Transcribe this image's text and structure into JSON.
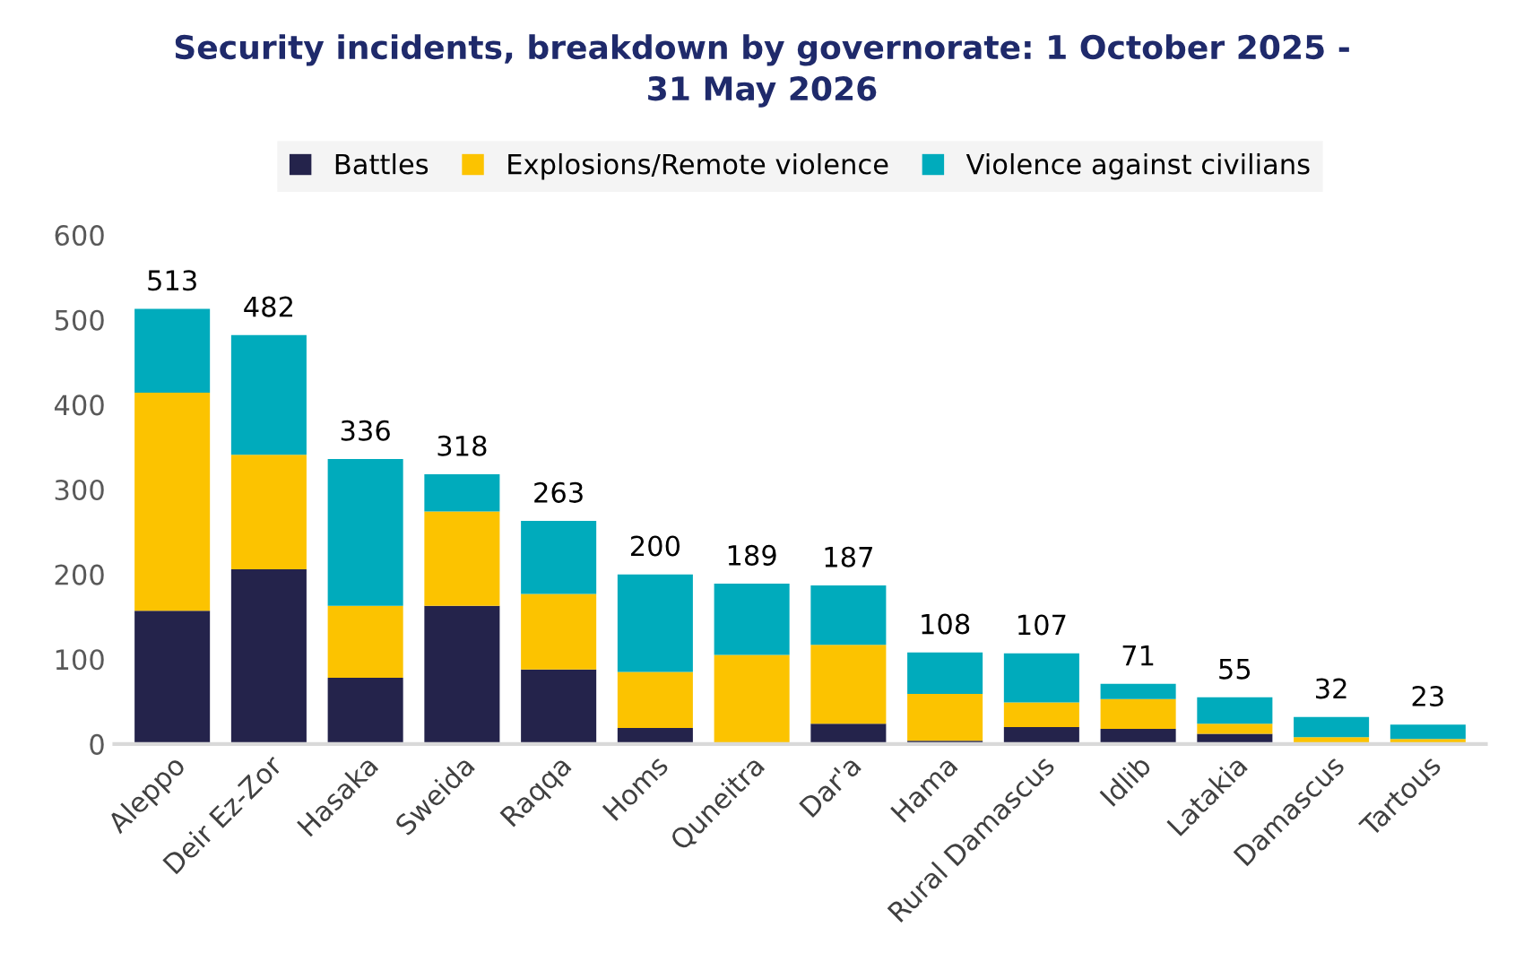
{
  "chart_data": {
    "type": "bar",
    "stacked": true,
    "title": "Security incidents, breakdown by governorate: 1 October 2025 -\n31 May 2026",
    "categories": [
      "Aleppo",
      "Deir Ez-Zor",
      "Hasaka",
      "Sweida",
      "Raqqa",
      "Homs",
      "Quneitra",
      "Dar'a",
      "Hama",
      "Rural Damascus",
      "Idlib",
      "Latakia",
      "Damascus",
      "Tartous"
    ],
    "series": [
      {
        "name": "Battles",
        "color": "#24234b",
        "values": [
          157,
          206,
          78,
          163,
          88,
          19,
          0,
          24,
          4,
          20,
          18,
          12,
          0,
          0
        ]
      },
      {
        "name": "Explosions/Remote violence",
        "color": "#fcc300",
        "values": [
          257,
          135,
          85,
          111,
          89,
          66,
          105,
          93,
          55,
          29,
          35,
          12,
          8,
          6
        ]
      },
      {
        "name": "Violence against civilians",
        "color": "#00abbc",
        "values": [
          99,
          141,
          173,
          44,
          86,
          115,
          84,
          70,
          49,
          58,
          18,
          31,
          24,
          17
        ]
      }
    ],
    "totals": [
      "513",
      "482",
      "336",
      "318",
      "263",
      "200",
      "189",
      "187",
      "108",
      "107",
      "71",
      "55",
      "32",
      "23"
    ],
    "ylim": [
      0,
      600
    ],
    "yticks": [
      0,
      100,
      200,
      300,
      400,
      500,
      600
    ],
    "grid": false,
    "legend": "top"
  }
}
